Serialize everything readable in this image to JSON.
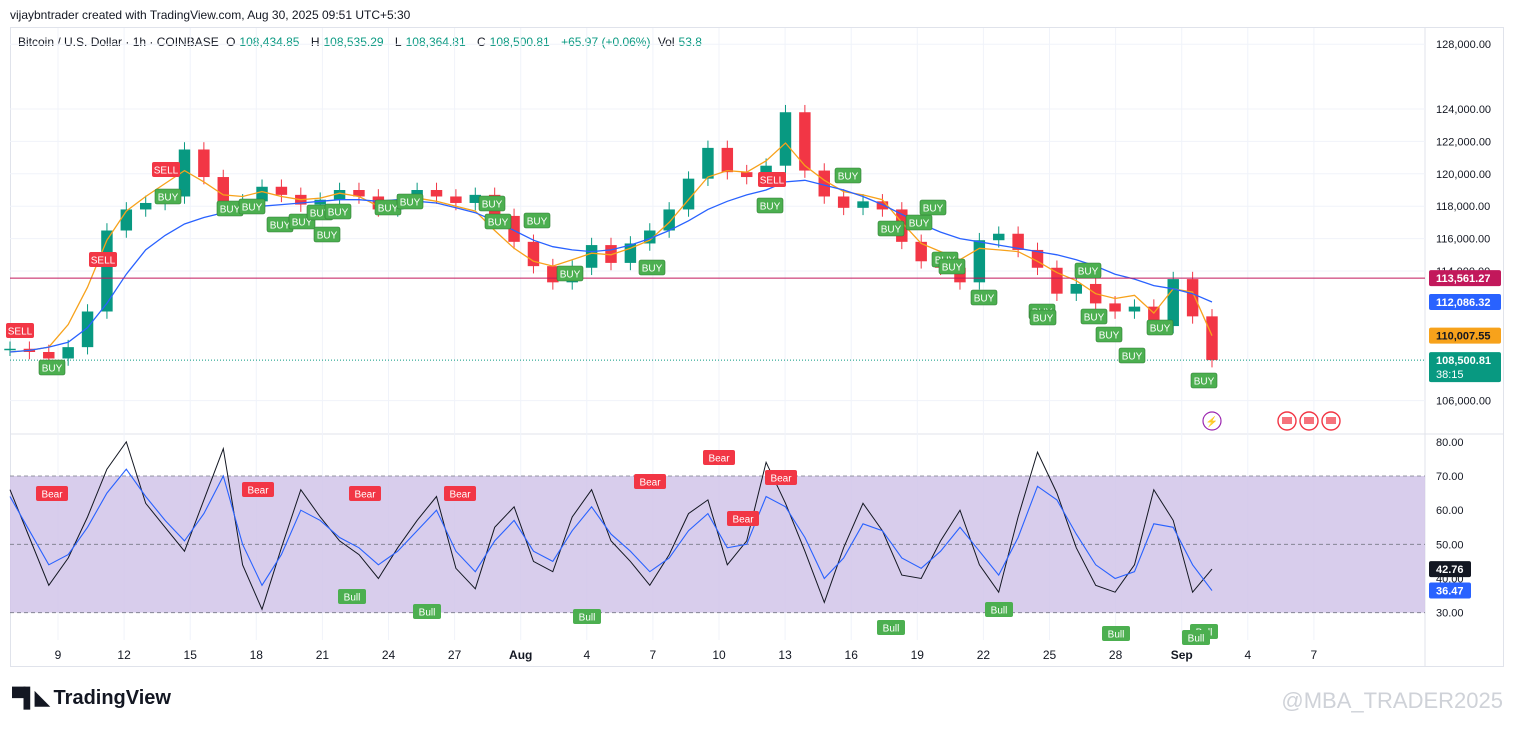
{
  "header": {
    "credit": "vijaybntrader created with TradingView.com, Aug 30, 2025 09:51 UTC+5:30"
  },
  "legend": {
    "symbol": "Bitcoin / U.S. Dollar · 1h · COINBASE",
    "open_label": "O",
    "open": "108,434.85",
    "high_label": "H",
    "high": "108,535.29",
    "low_label": "L",
    "low": "108,364.81",
    "close_label": "C",
    "close": "108,500.81",
    "change": "+65.97 (+0.06%)",
    "vol_label": "Vol",
    "vol": "53.8"
  },
  "colors": {
    "up": "#089981",
    "down": "#f23645",
    "sma_fast": "#f7a21b",
    "sma_slow": "#2962ff",
    "resistance": "#c2185b",
    "rsi_band": "#d1c4e9",
    "rsi_line": "#131722",
    "rsi_ma": "#2962ff",
    "buy": "#4caf50",
    "sell": "#f23645"
  },
  "chart_data": [
    {
      "type": "line",
      "panel": "price",
      "x_labels": [
        "9",
        "12",
        "15",
        "18",
        "21",
        "24",
        "27",
        "Aug",
        "4",
        "7",
        "10",
        "13",
        "16",
        "19",
        "22",
        "25",
        "28",
        "Sep",
        "4",
        "7"
      ],
      "y_ticks": [
        "128,000.00",
        "124,000.00",
        "122,000.00",
        "120,000.00",
        "118,000.00",
        "116,000.00",
        "114,000.00",
        "106,000.00"
      ],
      "ylim": [
        104000,
        129000
      ],
      "series": [
        {
          "values": [
            109200,
            109000,
            108600,
            109300,
            111500,
            116500,
            117800,
            118200,
            118600,
            121500,
            119800,
            118000,
            118300,
            119200,
            118700,
            118100,
            118400,
            119000,
            118600,
            117800,
            118300,
            119000,
            118600,
            118200,
            118700,
            117400,
            115800,
            114300,
            113300,
            114200,
            115600,
            114500,
            115700,
            116500,
            117800,
            119700,
            121600,
            120100,
            119800,
            120500,
            123800,
            120200,
            118600,
            117900,
            118300,
            117800,
            115800,
            114600,
            114200,
            113300,
            115900,
            116300,
            115300,
            114200,
            112600,
            113200,
            112000,
            111500,
            111800,
            110600,
            113500,
            111200,
            108500
          ]
        },
        {
          "values": [
            109000,
            109100,
            109300,
            110700,
            113000,
            115900,
            117700,
            118600,
            119400,
            120200,
            119500,
            118700,
            118600,
            118900,
            118600,
            118400,
            118500,
            118800,
            118600,
            118000,
            118200,
            118500,
            118300,
            118000,
            117700,
            116500,
            115400,
            114600,
            114300,
            114700,
            115100,
            115000,
            115400,
            115900,
            117000,
            118400,
            119800,
            120200,
            120100,
            120800,
            121900,
            120500,
            119600,
            118900,
            118700,
            118400,
            117000,
            115700,
            115200,
            114700,
            115400,
            115300,
            115200,
            114600,
            113900,
            113400,
            112600,
            112300,
            112500,
            111400,
            112900,
            112700,
            110007.55
          ]
        },
        {
          "values": [
            109000,
            109100,
            109300,
            109600,
            110500,
            112000,
            113800,
            115300,
            116200,
            116900,
            117300,
            117600,
            117800,
            118000,
            118100,
            118200,
            118300,
            118400,
            118400,
            118300,
            118400,
            118300,
            118200,
            117900,
            117600,
            117100,
            116500,
            115900,
            115500,
            115300,
            115200,
            115300,
            115600,
            116000,
            116500,
            117100,
            117800,
            118300,
            118700,
            119000,
            119500,
            119600,
            119300,
            119000,
            118600,
            118100,
            117500,
            116900,
            116400,
            116000,
            115800,
            115600,
            115400,
            115200,
            115000,
            114700,
            114300,
            113800,
            113500,
            113100,
            112900,
            112600,
            112086.32
          ]
        }
      ],
      "price_labels": {
        "resistance": "113,561.27",
        "sma_slow": "112,086.32",
        "sma_fast": "110,007.55",
        "last": "108,500.81",
        "countdown": "38:15"
      },
      "resistance": 113561.27,
      "last_price": 108500.81,
      "signals_buy": [
        "BUY",
        "BUY",
        "BUY",
        "BUY",
        "BUY",
        "BUY",
        "BUY",
        "BUY",
        "BUY",
        "BUY",
        "BUY",
        "BUY",
        "BUY",
        "BUY",
        "BUY",
        "BUY",
        "BUY",
        "BUY",
        "BUY",
        "BUY",
        "BUY",
        "BUY",
        "BUY",
        "BUY",
        "BUY",
        "BUY",
        "BUY",
        "BUY",
        "BUY",
        "BUY",
        "BUY",
        "BUY"
      ],
      "signals_sell": [
        "SELL",
        "SELL",
        "SELL",
        "SELL"
      ]
    },
    {
      "type": "line",
      "panel": "rsi",
      "y_ticks": [
        "80.00",
        "70.00",
        "60.00",
        "50.00",
        "40.00",
        "30.00"
      ],
      "ylim": [
        22,
        82
      ],
      "band": [
        30,
        70
      ],
      "series": [
        {
          "values": [
            66,
            52,
            38,
            46,
            58,
            72,
            80,
            62,
            55,
            48,
            63,
            78,
            44,
            31,
            49,
            66,
            58,
            51,
            47,
            40,
            49,
            57,
            64,
            43,
            37,
            55,
            61,
            45,
            42,
            58,
            66,
            51,
            45,
            38,
            47,
            59,
            63,
            44,
            51,
            74,
            62,
            48,
            33,
            49,
            62,
            54,
            41,
            40,
            51,
            60,
            44,
            36,
            58,
            77,
            65,
            49,
            38,
            36,
            44,
            66,
            57,
            36,
            42.76
          ]
        },
        {
          "values": [
            64,
            54,
            44,
            47,
            55,
            65,
            72,
            64,
            57,
            51,
            59,
            70,
            50,
            38,
            47,
            60,
            57,
            52,
            49,
            44,
            48,
            54,
            60,
            48,
            42,
            51,
            57,
            48,
            45,
            54,
            61,
            53,
            48,
            42,
            46,
            54,
            59,
            49,
            50,
            64,
            61,
            52,
            40,
            46,
            56,
            54,
            46,
            43,
            48,
            55,
            48,
            41,
            52,
            67,
            63,
            53,
            44,
            40,
            42,
            56,
            55,
            44,
            36.47
          ]
        }
      ],
      "value_labels": {
        "rsi": "42.76",
        "rsi_ma": "36.47"
      },
      "signals_bear": [
        "Bear",
        "Bear",
        "Bear",
        "Bear",
        "Bear",
        "Bear",
        "Bear",
        "Bear"
      ],
      "signals_bull": [
        "Bull",
        "Bull",
        "Bull",
        "Bull",
        "Bull",
        "Bull",
        "Bull",
        "Bull",
        "Bull",
        "Bull"
      ]
    }
  ],
  "footer": {
    "brand": "TradingView",
    "brand_icon": "tradingview-logo-icon",
    "watermark": "@MBA_TRADER2025"
  }
}
